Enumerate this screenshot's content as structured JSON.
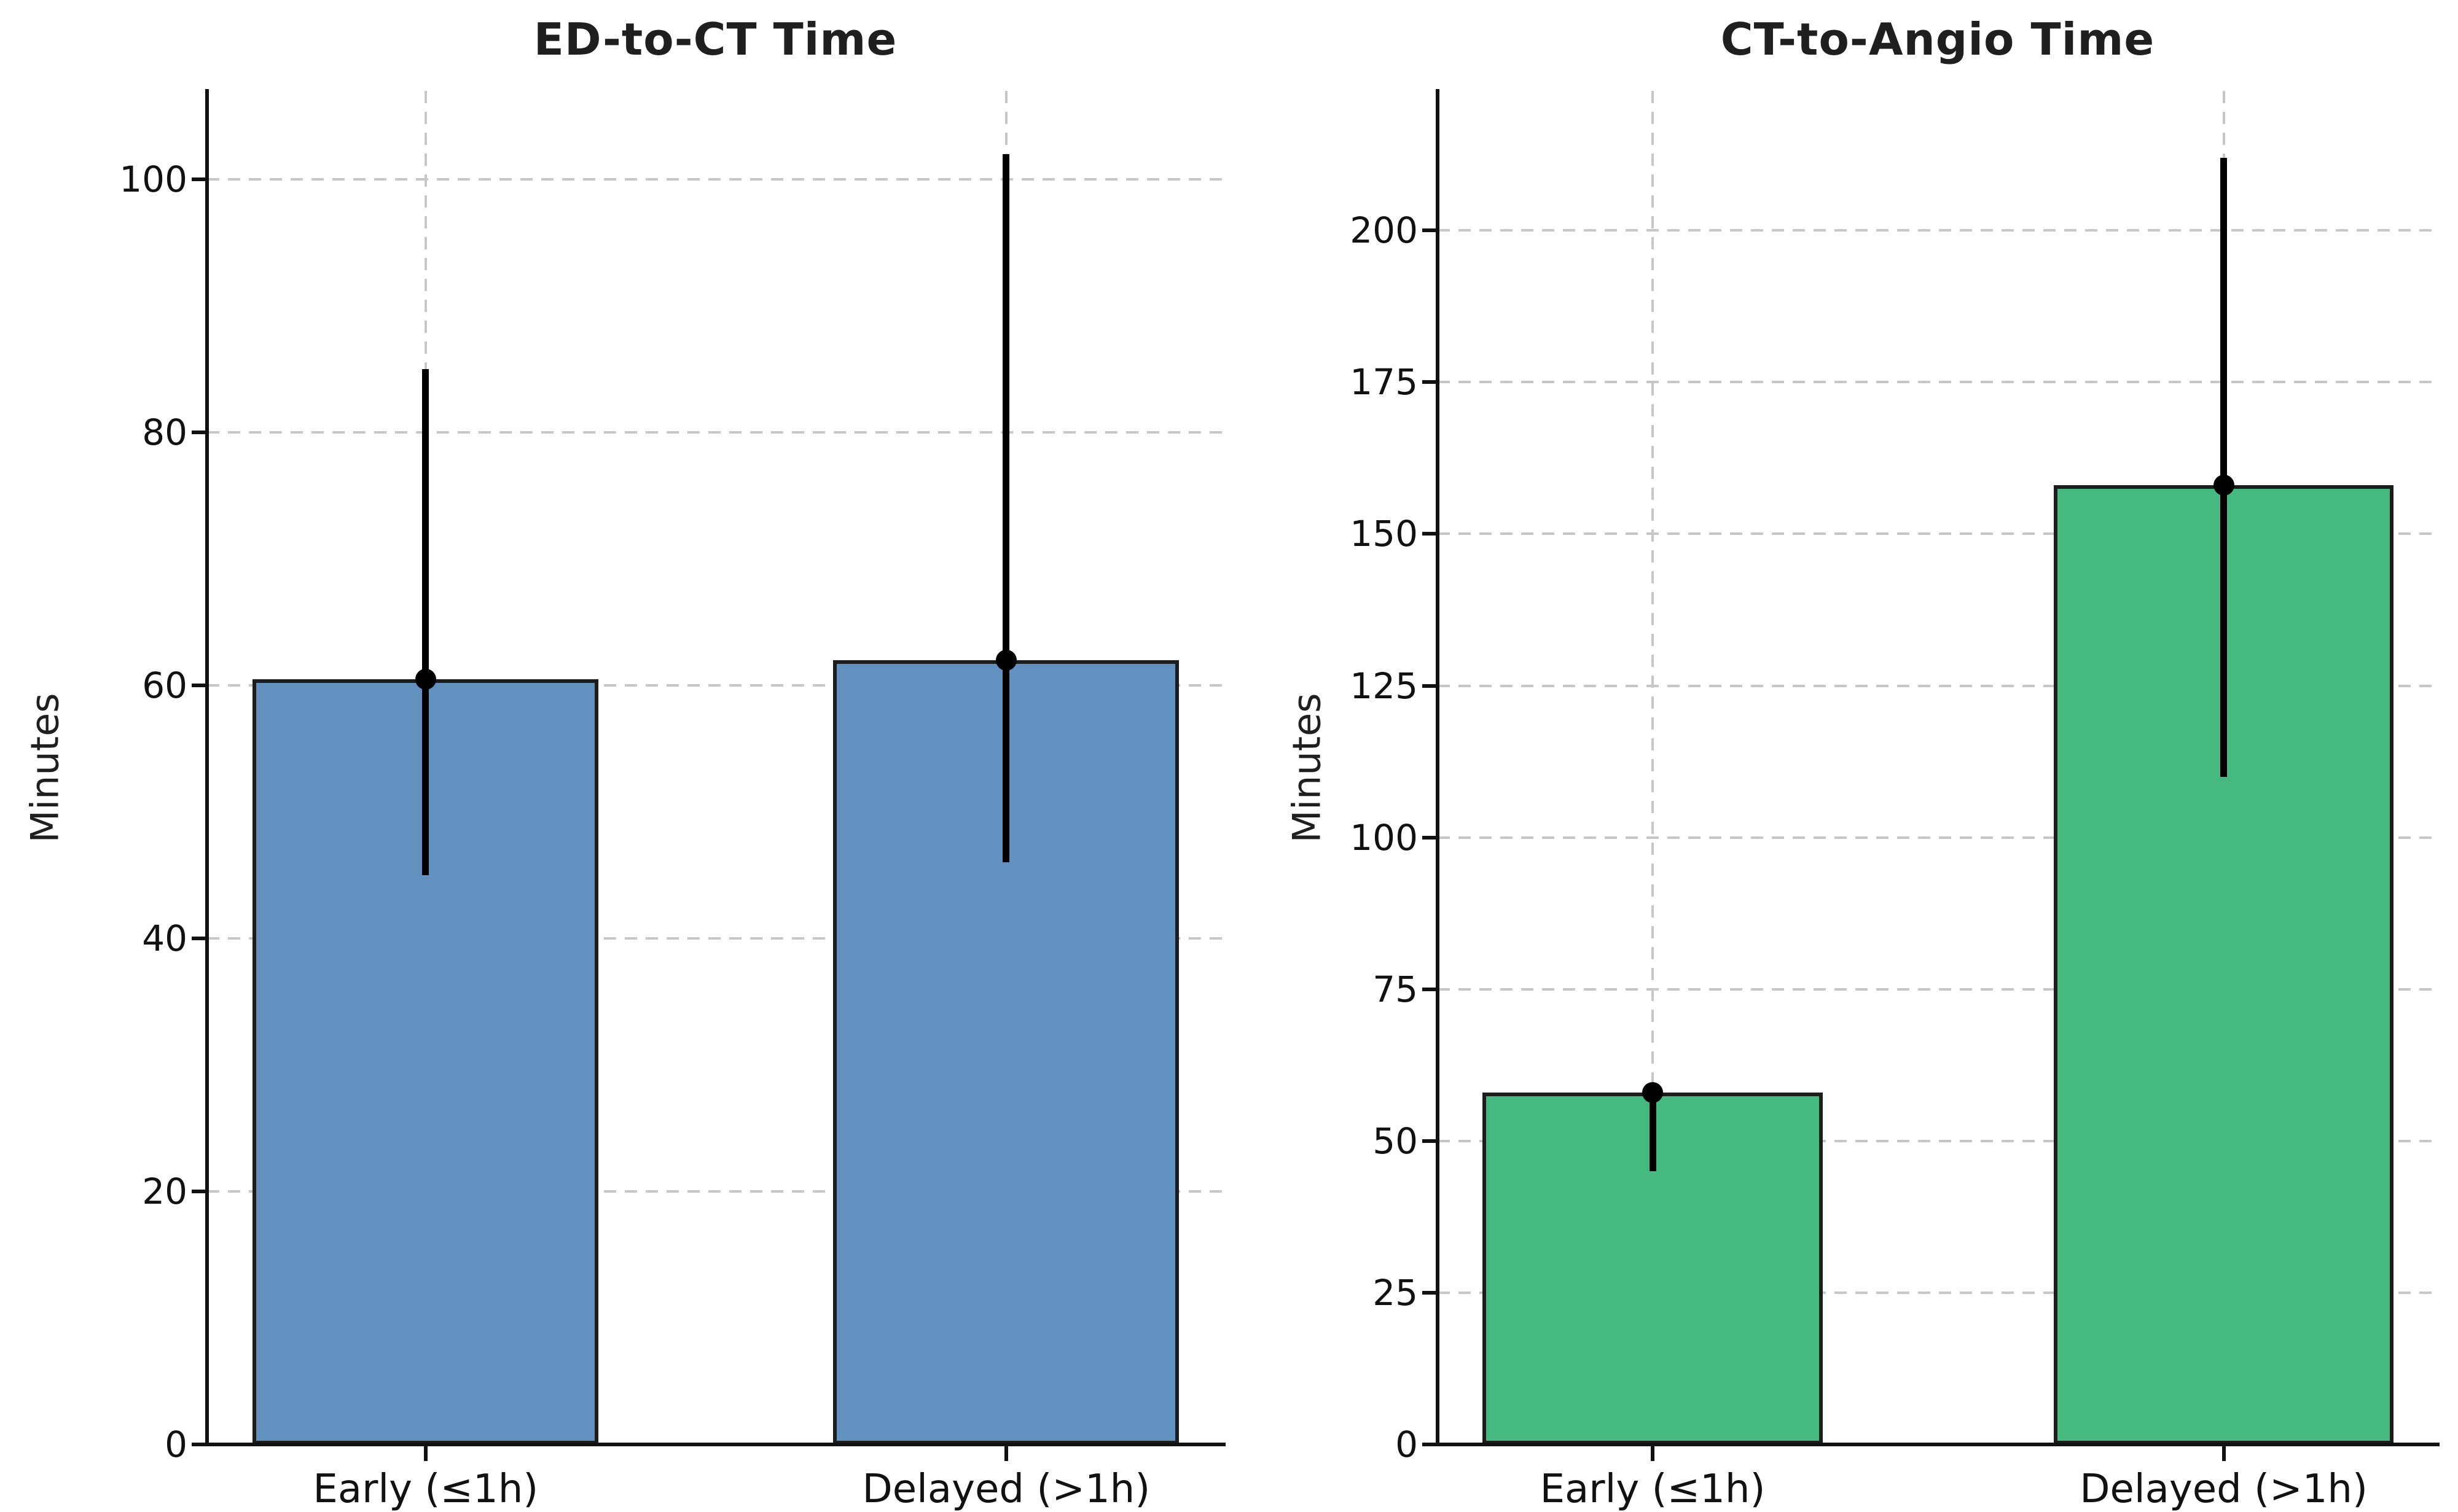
{
  "figure_title": "",
  "chart_data": [
    {
      "type": "bar",
      "title": "ED-to-CT Time",
      "ylabel": "Minutes",
      "categories": [
        "Early (≤1h)",
        "Delayed (>1h)"
      ],
      "values": [
        60.5,
        62
      ],
      "error_low": [
        45,
        46
      ],
      "error_high": [
        85,
        102
      ],
      "mean_markers": [
        60.5,
        62
      ],
      "yticks": [
        0,
        20,
        40,
        60,
        80,
        100
      ],
      "ylim": [
        0,
        107
      ],
      "grid": true,
      "legend_position": "none",
      "colors": {
        "bar": "#6290bf",
        "edge": "#1c1c1c",
        "errorbar": "#000000"
      }
    },
    {
      "type": "bar",
      "title": "CT-to-Angio Time",
      "ylabel": "Minutes",
      "categories": [
        "Early (≤1h)",
        "Delayed (>1h)"
      ],
      "values": [
        58,
        158
      ],
      "error_low": [
        45,
        110
      ],
      "error_high": [
        58,
        212
      ],
      "mean_markers": [
        58,
        158
      ],
      "yticks": [
        0,
        25,
        50,
        75,
        100,
        125,
        150,
        175,
        200
      ],
      "ylim": [
        0,
        223
      ],
      "grid": true,
      "legend_position": "none",
      "colors": {
        "bar": "#46b981",
        "edge": "#1c1c1c",
        "errorbar": "#000000"
      }
    }
  ]
}
